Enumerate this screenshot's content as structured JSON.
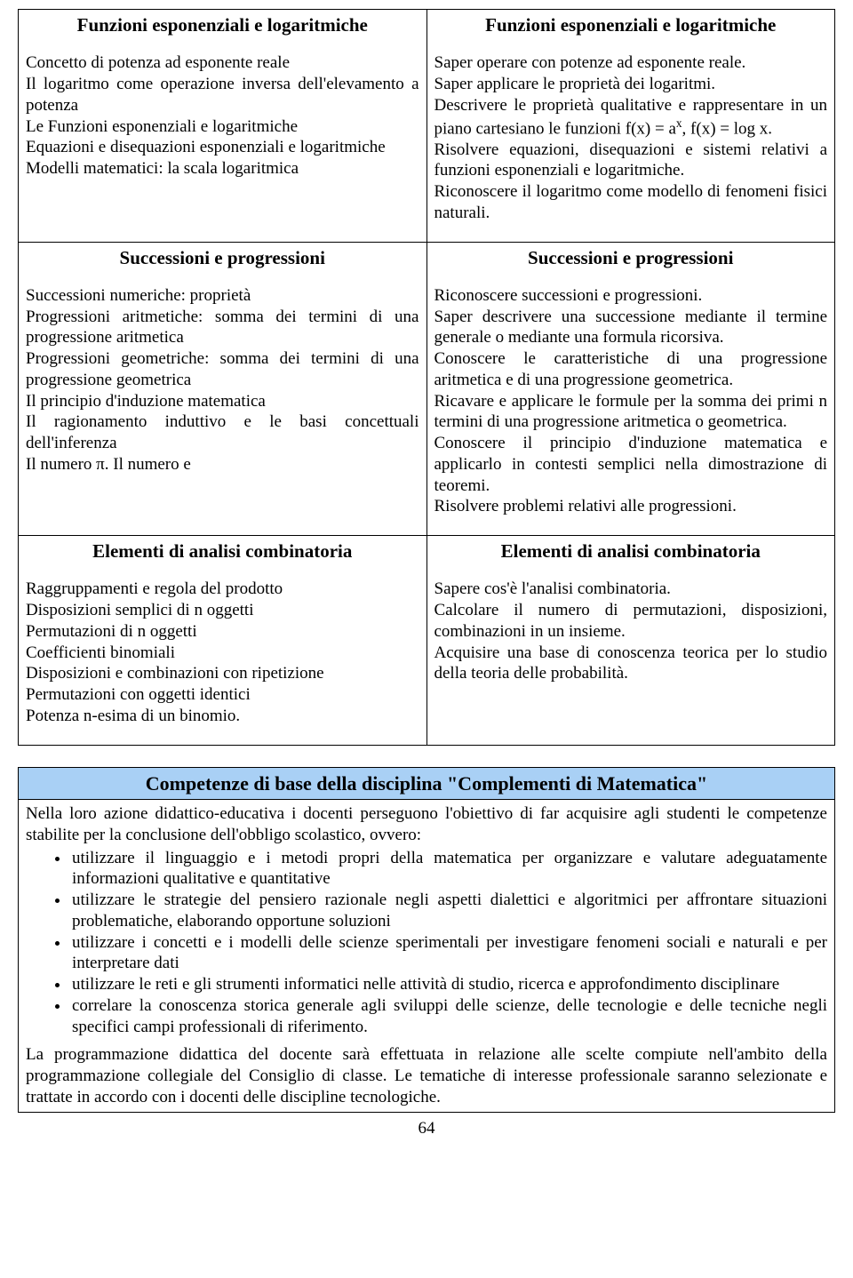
{
  "table1": {
    "r1": {
      "left_head": "Funzioni esponenziali e logaritmiche",
      "left_body": "Concetto di potenza ad esponente reale\nIl logaritmo come operazione inversa dell'elevamento a potenza\nLe Funzioni esponenziali e logaritmiche\nEquazioni e disequazioni esponenziali e logaritmiche\nModelli matematici: la scala logaritmica",
      "right_head": "Funzioni esponenziali e logaritmiche",
      "right_body_html": "Saper operare con potenze ad esponente reale.\nSaper applicare le proprietà dei logaritmi.\nDescrivere le proprietà qualitative e  rappresentare in un piano cartesiano le funzioni f(x) = a<sup>x</sup>, f(x) = log x.\nRisolvere equazioni, disequazioni e sistemi relativi a funzioni esponenziali e logaritmiche.\nRiconoscere il logaritmo come modello di fenomeni fisici naturali."
    },
    "r2": {
      "left_head": "Successioni e progressioni",
      "left_body": "Successioni numeriche: proprietà\nProgressioni aritmetiche: somma dei termini di una progressione aritmetica\nProgressioni geometriche: somma dei termini di una progressione geometrica\nIl principio d'induzione matematica\nIl ragionamento induttivo e le basi concettuali dell'inferenza\nIl numero π. Il numero e",
      "right_head": "Successioni e progressioni",
      "right_body": "Riconoscere successioni e progressioni.\nSaper descrivere una successione mediante il termine generale o mediante una formula ricorsiva.\nConoscere le caratteristiche di una progressione aritmetica e di una progressione geometrica.\nRicavare e applicare le formule per la somma dei primi n termini di una progressione aritmetica o geometrica.\nConoscere il principio d'induzione matematica e applicarlo in contesti semplici nella dimostrazione di teoremi.\nRisolvere problemi relativi alle progressioni."
    },
    "r3": {
      "left_head": "Elementi di analisi combinatoria",
      "left_body": "Raggruppamenti e regola del prodotto\nDisposizioni semplici di n oggetti\nPermutazioni di n oggetti\nCoefficienti binomiali\nDisposizioni e combinazioni con ripetizione\nPermutazioni con oggetti identici\nPotenza n-esima di un binomio.",
      "right_head": "Elementi di analisi combinatoria",
      "right_body": "Sapere cos'è l'analisi combinatoria.\nCalcolare il numero di permutazioni, disposizioni, combinazioni in un insieme.\nAcquisire una base di conoscenza teorica per lo studio della teoria delle probabilità."
    }
  },
  "box2": {
    "title": "Competenze di base della disciplina \"Complementi di Matematica\"",
    "intro": "Nella loro azione didattico-educativa i docenti perseguono l'obiettivo di far acquisire agli studenti le competenze stabilite per la conclusione dell'obbligo scolastico, ovvero:",
    "bullets": [
      "utilizzare il linguaggio e i metodi propri della matematica per organizzare e valutare adeguatamente informazioni qualitative e quantitative",
      "utilizzare le strategie del pensiero razionale negli aspetti dialettici e algoritmici per affrontare situazioni problematiche, elaborando opportune soluzioni",
      "  utilizzare i concetti e i modelli delle scienze sperimentali per investigare fenomeni sociali e naturali e per interpretare dati",
      "  utilizzare le reti e gli strumenti informatici nelle attività di studio, ricerca e approfondimento disciplinare",
      "correlare la conoscenza storica generale agli sviluppi delle scienze, delle tecnologie e delle tecniche negli specifici campi professionali di riferimento."
    ],
    "closing": "La programmazione didattica del docente sarà effettuata in relazione alle scelte compiute nell'ambito della programmazione collegiale del Consiglio di classe. Le tematiche di interesse professionale saranno selezionate e trattate in accordo con i docenti delle discipline tecnologiche."
  },
  "page_number": "64"
}
